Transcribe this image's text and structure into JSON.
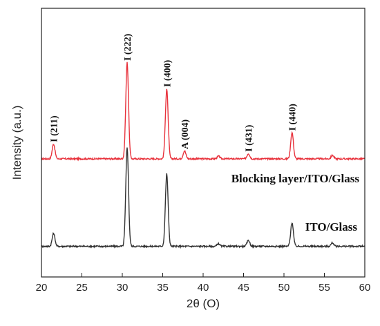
{
  "chart_data": {
    "type": "line",
    "title": "",
    "xlabel": "2θ (O)",
    "ylabel": "Intensity (a.u.)",
    "xlim": [
      20,
      60
    ],
    "xticks": [
      20,
      25,
      30,
      35,
      40,
      45,
      50,
      55,
      60
    ],
    "grid": false,
    "legend": "none",
    "series": [
      {
        "name": "Blocking layer/ITO/Glass",
        "color": "#e8323c",
        "baseline": 1.0,
        "peaks": [
          {
            "x": 21.5,
            "y": 0.17
          },
          {
            "x": 30.6,
            "y": 1.1
          },
          {
            "x": 35.5,
            "y": 0.8
          },
          {
            "x": 37.7,
            "y": 0.09
          },
          {
            "x": 41.9,
            "y": 0.03
          },
          {
            "x": 45.6,
            "y": 0.06
          },
          {
            "x": 51.0,
            "y": 0.3
          },
          {
            "x": 56.0,
            "y": 0.04
          }
        ]
      },
      {
        "name": "ITO/Glass",
        "color": "#333333",
        "baseline": 0.0,
        "peaks": [
          {
            "x": 21.5,
            "y": 0.15
          },
          {
            "x": 30.6,
            "y": 1.13
          },
          {
            "x": 35.5,
            "y": 0.83
          },
          {
            "x": 41.9,
            "y": 0.03
          },
          {
            "x": 45.6,
            "y": 0.07
          },
          {
            "x": 51.0,
            "y": 0.27
          },
          {
            "x": 56.0,
            "y": 0.04
          }
        ]
      }
    ],
    "annotations": [
      {
        "text": "I (211)",
        "x": 21.5,
        "y": 1.19
      },
      {
        "text": "I (222)",
        "x": 30.6,
        "y": 2.12
      },
      {
        "text": "I (400)",
        "x": 35.5,
        "y": 1.82
      },
      {
        "text": "A (004)",
        "x": 37.7,
        "y": 1.11
      },
      {
        "text": "I (431)",
        "x": 45.6,
        "y": 1.08
      },
      {
        "text": "I (440)",
        "x": 51.0,
        "y": 1.32
      }
    ]
  }
}
